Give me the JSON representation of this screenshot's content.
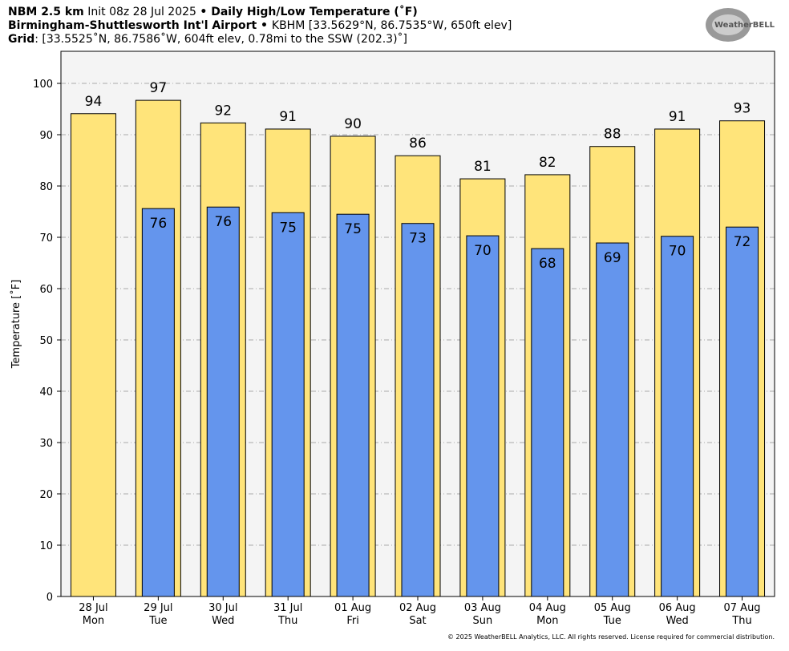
{
  "chart_data": {
    "type": "bar",
    "header": [
      [
        {
          "text": "NBM 2.5 km",
          "bold": true
        },
        {
          "text": " Init 08z 28 Jul 2025 ",
          "bold": false
        },
        {
          "text": "• ",
          "bold": true
        },
        {
          "text": "Daily High/Low Temperature (˚F)",
          "bold": true
        }
      ],
      [
        {
          "text": "Birmingham-Shuttlesworth Int'l Airport",
          "bold": true
        },
        {
          "text": " • ",
          "bold": true
        },
        {
          "text": "KBHM [33.5629°N, 86.7535°W, 650ft elev]",
          "bold": false
        }
      ],
      [
        {
          "text": "Grid",
          "bold": true
        },
        {
          "text": ": [33.5525˚N, 86.7586˚W, 604ft elev, 0.78mi to the SSW (202.3)˚]",
          "bold": false
        }
      ]
    ],
    "logo": "WeatherBELL",
    "footer": "© 2025 WeatherBELL Analytics, LLC. All rights reserved. License required for commercial distribution.",
    "ylabel": "Temperature [˚F]",
    "categories": [
      "28 Jul",
      "29 Jul",
      "30 Jul",
      "31 Jul",
      "01 Aug",
      "02 Aug",
      "03 Aug",
      "04 Aug",
      "05 Aug",
      "06 Aug",
      "07 Aug"
    ],
    "category_days": [
      "Mon",
      "Tue",
      "Wed",
      "Thu",
      "Fri",
      "Sat",
      "Sun",
      "Mon",
      "Tue",
      "Wed",
      "Thu"
    ],
    "series": [
      {
        "color": "#ffe47a",
        "values": [
          94.1,
          96.7,
          92.3,
          91.1,
          89.7,
          85.9,
          81.4,
          82.2,
          87.7,
          91.1,
          92.7
        ],
        "value_labels": [
          "94",
          "97",
          "92",
          "91",
          "90",
          "86",
          "81",
          "82",
          "88",
          "91",
          "93"
        ]
      },
      {
        "color": "#6495ed",
        "values": [
          null,
          75.6,
          75.9,
          74.8,
          74.5,
          72.7,
          70.3,
          67.8,
          68.9,
          70.2,
          72.0
        ],
        "value_labels": [
          null,
          "76",
          "76",
          "75",
          "75",
          "73",
          "70",
          "68",
          "69",
          "70",
          "72"
        ]
      }
    ],
    "ylim": [
      0,
      106.25
    ],
    "yticks": [
      0,
      10,
      20,
      30,
      40,
      50,
      60,
      70,
      80,
      90,
      100
    ],
    "grid": true
  }
}
